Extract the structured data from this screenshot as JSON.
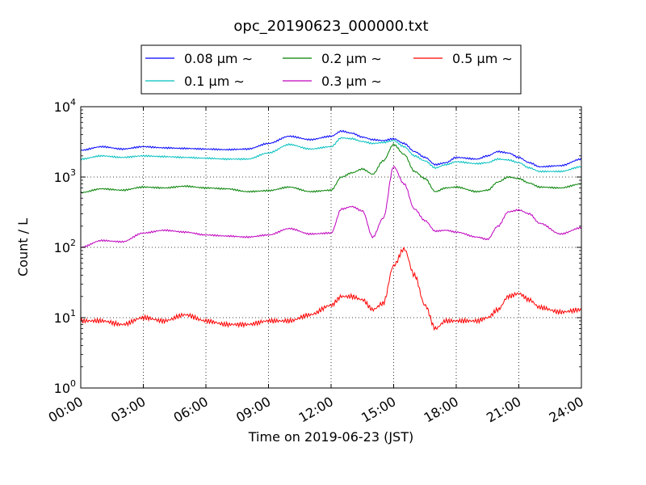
{
  "chart_data": {
    "type": "line",
    "title": "opc_20190623_000000.txt",
    "xlabel": "Time on 2019-06-23 (JST)",
    "ylabel": "Count / L",
    "x_unit": "hours",
    "xlim": [
      0,
      24
    ],
    "ylim": [
      1,
      10000
    ],
    "yscale": "log",
    "grid": true,
    "legend_position": "top-center",
    "x_ticks": [
      "00:00",
      "03:00",
      "06:00",
      "09:00",
      "12:00",
      "15:00",
      "18:00",
      "21:00",
      "24:00"
    ],
    "y_ticks": [
      {
        "base": "10",
        "exp": "0"
      },
      {
        "base": "10",
        "exp": "1"
      },
      {
        "base": "10",
        "exp": "2"
      },
      {
        "base": "10",
        "exp": "3"
      },
      {
        "base": "10",
        "exp": "4"
      }
    ],
    "x": [
      0,
      1,
      2,
      3,
      4,
      5,
      6,
      7,
      8,
      9,
      10,
      11,
      12,
      12.5,
      13,
      13.5,
      14,
      14.5,
      15,
      15.5,
      16,
      16.5,
      17,
      17.5,
      18,
      19,
      19.5,
      20,
      20.5,
      21,
      21.5,
      22,
      23,
      24
    ],
    "series": [
      {
        "name": "0.08 μm ∼",
        "color": "#0000ff",
        "values": [
          2400,
          2700,
          2500,
          2700,
          2600,
          2550,
          2500,
          2450,
          2500,
          3000,
          3800,
          3400,
          3800,
          4500,
          4200,
          3700,
          3400,
          3300,
          3500,
          3000,
          2300,
          1900,
          1500,
          1600,
          1900,
          1800,
          2000,
          2300,
          2200,
          1900,
          1600,
          1400,
          1450,
          1800
        ]
      },
      {
        "name": "0.1 μm ∼",
        "color": "#00bfbf",
        "values": [
          1800,
          2000,
          1900,
          2000,
          1950,
          1900,
          1850,
          1800,
          1800,
          2200,
          2900,
          2500,
          2700,
          3600,
          3500,
          3200,
          3000,
          3100,
          3300,
          2700,
          2000,
          1700,
          1350,
          1500,
          1650,
          1550,
          1600,
          1800,
          1750,
          1600,
          1350,
          1200,
          1200,
          1400
        ]
      },
      {
        "name": "0.2 μm ∼",
        "color": "#008000",
        "values": [
          600,
          680,
          650,
          720,
          700,
          740,
          700,
          680,
          620,
          640,
          720,
          620,
          650,
          1000,
          1150,
          1300,
          1100,
          1700,
          2900,
          2100,
          1200,
          950,
          620,
          700,
          720,
          620,
          650,
          850,
          1000,
          950,
          820,
          720,
          700,
          800
        ]
      },
      {
        "name": "0.3 μm ∼",
        "color": "#bf00bf",
        "values": [
          100,
          125,
          120,
          160,
          175,
          165,
          150,
          145,
          140,
          150,
          185,
          155,
          160,
          350,
          380,
          330,
          140,
          260,
          1400,
          800,
          350,
          240,
          170,
          175,
          165,
          140,
          130,
          200,
          320,
          340,
          300,
          220,
          155,
          190
        ]
      },
      {
        "name": "0.5 μm ∼",
        "color": "#ff0000",
        "values": [
          9,
          9,
          8,
          10,
          9,
          11,
          9,
          8,
          8,
          9,
          9,
          11,
          15,
          20,
          20,
          18,
          13,
          16,
          55,
          95,
          40,
          15,
          7,
          9,
          9,
          9,
          10,
          13,
          20,
          22,
          18,
          14,
          12,
          13
        ]
      }
    ]
  }
}
